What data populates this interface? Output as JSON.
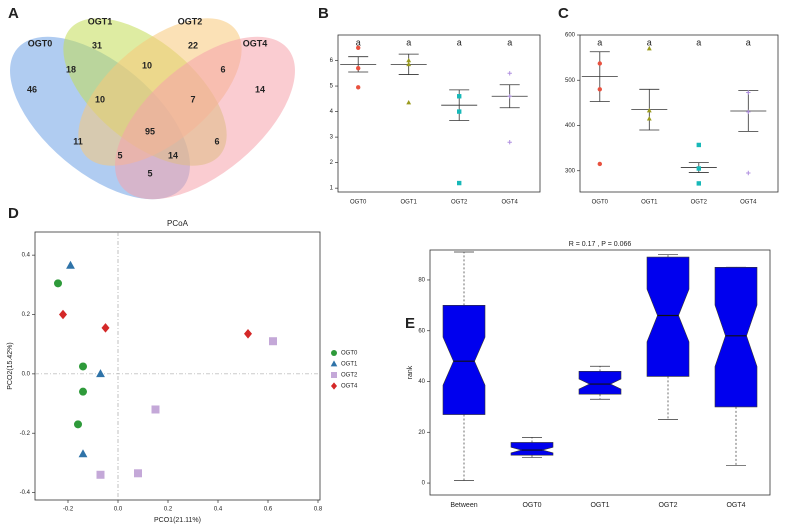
{
  "chart_data": [
    {
      "type": "venn",
      "panel": "A",
      "sets": [
        "OGT0",
        "OGT1",
        "OGT2",
        "OGT4"
      ],
      "colors": [
        "#6fa3e6",
        "#c2dc55",
        "#f7c97a",
        "#f5a3ab"
      ],
      "values": [
        46,
        31,
        22,
        14,
        18,
        10,
        6,
        10,
        7,
        95,
        11,
        6,
        5,
        14,
        5
      ]
    },
    {
      "type": "dot",
      "panel": "B",
      "categories": [
        "OGT0",
        "OGT1",
        "OGT2",
        "OGT4"
      ],
      "colors": [
        "#e8513f",
        "#9a9a1e",
        "#17b8b8",
        "#b090e0"
      ],
      "markers": [
        "circle",
        "triangle",
        "square",
        "plus"
      ],
      "points": [
        [
          6.5,
          5.7,
          4.95
        ],
        [
          6.0,
          5.85,
          4.35
        ],
        [
          4.6,
          4.0,
          1.2
        ],
        [
          5.5,
          4.6,
          2.8
        ]
      ],
      "means": [
        5.85,
        5.85,
        4.25,
        4.6
      ],
      "errors": [
        0.3,
        0.4,
        0.6,
        0.45
      ],
      "letters": [
        "a",
        "a",
        "a",
        "a"
      ],
      "ylim": [
        0.85,
        7.0
      ],
      "yticks": [
        1,
        2,
        3,
        4,
        5,
        6
      ]
    },
    {
      "type": "dot",
      "panel": "C",
      "categories": [
        "OGT0",
        "OGT1",
        "OGT2",
        "OGT4"
      ],
      "colors": [
        "#e8513f",
        "#9a9a1e",
        "#17b8b8",
        "#b090e0"
      ],
      "markers": [
        "circle",
        "triangle",
        "square",
        "plus"
      ],
      "points": [
        [
          537,
          480,
          315
        ],
        [
          570,
          433,
          415
        ],
        [
          357,
          305,
          272
        ],
        [
          473,
          430,
          295
        ]
      ],
      "means": [
        508,
        435,
        307,
        432
      ],
      "errors": [
        55,
        45,
        11,
        45
      ],
      "letters": [
        "a",
        "a",
        "a",
        "a"
      ],
      "ylim": [
        253,
        600
      ],
      "yticks": [
        300,
        400,
        500,
        600
      ]
    },
    {
      "type": "scatter",
      "panel": "D",
      "title": "PCoA",
      "xlabel": "PCO1(21.11%)",
      "ylabel": "PCO2(15.42%)",
      "xlim": [
        -0.332,
        0.808
      ],
      "xticks": [
        -0.2,
        {
          "value": 0,
          "label": "0.0"
        },
        0.2,
        0.4,
        0.6,
        0.8
      ],
      "ylim": [
        -0.425,
        0.478
      ],
      "yticks": [
        -0.4,
        -0.2,
        {
          "value": 0,
          "label": "0.0"
        },
        0.2,
        0.4
      ],
      "series": [
        {
          "name": "OGT0",
          "color": "#2e9a3a",
          "marker": "circle",
          "x": [
            -0.24,
            -0.14,
            -0.14,
            -0.16
          ],
          "y": [
            0.305,
            0.025,
            -0.06,
            -0.17
          ]
        },
        {
          "name": "OGT1",
          "color": "#2f73a8",
          "marker": "triangle",
          "x": [
            -0.19,
            -0.07,
            -0.14
          ],
          "y": [
            0.365,
            0.0,
            -0.27
          ]
        },
        {
          "name": "OGT2",
          "color": "#c4a8d8",
          "marker": "square",
          "x": [
            0.62,
            0.15,
            0.08,
            -0.07
          ],
          "y": [
            0.11,
            -0.12,
            -0.335,
            -0.34
          ]
        },
        {
          "name": "OGT4",
          "color": "#d42828",
          "marker": "diamond",
          "x": [
            -0.22,
            -0.05,
            0.52
          ],
          "y": [
            0.2,
            0.155,
            0.135
          ]
        }
      ]
    },
    {
      "type": "box",
      "panel": "E",
      "title": "R = 0.17 , P = 0.066",
      "ylabel": "rank",
      "color": "#0000ee",
      "categories": [
        "Between",
        "OGT0",
        "OGT1",
        "OGT2",
        "OGT4"
      ],
      "min": [
        1,
        10,
        33,
        25,
        7
      ],
      "q1": [
        27,
        11,
        35,
        42,
        30
      ],
      "median": [
        48,
        13,
        39,
        66,
        58
      ],
      "q3": [
        70,
        16,
        44,
        89,
        85
      ],
      "max": [
        91,
        18,
        46,
        90,
        85
      ],
      "ylim": [
        -4.7,
        91.8
      ],
      "yticks": [
        0,
        20,
        40,
        60,
        80
      ]
    }
  ]
}
